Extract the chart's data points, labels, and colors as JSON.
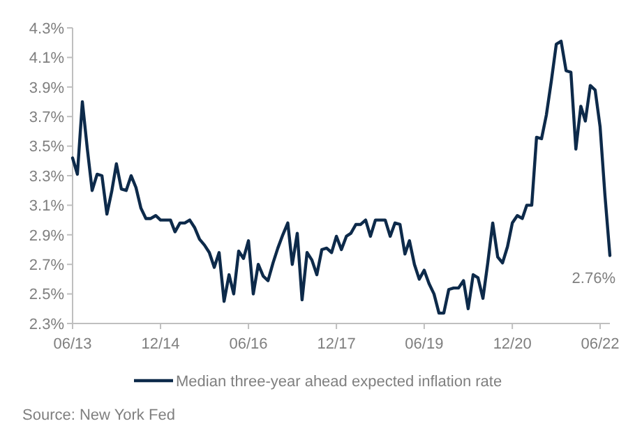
{
  "chart_data": {
    "type": "line",
    "x": [
      "2013-06",
      "2013-07",
      "2013-08",
      "2013-09",
      "2013-10",
      "2013-11",
      "2013-12",
      "2014-01",
      "2014-02",
      "2014-03",
      "2014-04",
      "2014-05",
      "2014-06",
      "2014-07",
      "2014-08",
      "2014-09",
      "2014-10",
      "2014-11",
      "2014-12",
      "2015-01",
      "2015-02",
      "2015-03",
      "2015-04",
      "2015-05",
      "2015-06",
      "2015-07",
      "2015-08",
      "2015-09",
      "2015-10",
      "2015-11",
      "2015-12",
      "2016-01",
      "2016-02",
      "2016-03",
      "2016-04",
      "2016-05",
      "2016-06",
      "2016-07",
      "2016-08",
      "2016-09",
      "2016-10",
      "2016-11",
      "2016-12",
      "2017-01",
      "2017-02",
      "2017-03",
      "2017-04",
      "2017-05",
      "2017-06",
      "2017-07",
      "2017-08",
      "2017-09",
      "2017-10",
      "2017-11",
      "2017-12",
      "2018-01",
      "2018-02",
      "2018-03",
      "2018-04",
      "2018-05",
      "2018-06",
      "2018-07",
      "2018-08",
      "2018-09",
      "2018-10",
      "2018-11",
      "2018-12",
      "2019-01",
      "2019-02",
      "2019-03",
      "2019-04",
      "2019-05",
      "2019-06",
      "2019-07",
      "2019-08",
      "2019-09",
      "2019-10",
      "2019-11",
      "2019-12",
      "2020-01",
      "2020-02",
      "2020-03",
      "2020-04",
      "2020-05",
      "2020-06",
      "2020-07",
      "2020-08",
      "2020-09",
      "2020-10",
      "2020-11",
      "2020-12",
      "2021-01",
      "2021-02",
      "2021-03",
      "2021-04",
      "2021-05",
      "2021-06",
      "2021-07",
      "2021-08",
      "2021-09",
      "2021-10",
      "2021-11",
      "2021-12",
      "2022-01",
      "2022-02",
      "2022-03",
      "2022-04",
      "2022-05",
      "2022-06",
      "2022-07",
      "2022-08"
    ],
    "series": [
      {
        "name": "Median three-year ahead expected inflation rate",
        "color": "#0d2a4a",
        "values": [
          3.42,
          3.31,
          3.8,
          3.48,
          3.2,
          3.31,
          3.3,
          3.04,
          3.2,
          3.38,
          3.21,
          3.2,
          3.3,
          3.22,
          3.08,
          3.01,
          3.01,
          3.03,
          3.0,
          3.0,
          3.0,
          2.92,
          2.98,
          2.98,
          3.0,
          2.95,
          2.87,
          2.83,
          2.78,
          2.68,
          2.78,
          2.45,
          2.63,
          2.5,
          2.79,
          2.74,
          2.86,
          2.5,
          2.7,
          2.62,
          2.59,
          2.71,
          2.81,
          2.9,
          2.98,
          2.7,
          2.91,
          2.46,
          2.78,
          2.73,
          2.63,
          2.8,
          2.81,
          2.78,
          2.89,
          2.8,
          2.89,
          2.91,
          2.97,
          2.97,
          3.0,
          2.89,
          3.0,
          3.0,
          3.0,
          2.89,
          2.98,
          2.97,
          2.77,
          2.86,
          2.7,
          2.6,
          2.66,
          2.57,
          2.5,
          2.37,
          2.37,
          2.53,
          2.54,
          2.54,
          2.59,
          2.4,
          2.63,
          2.61,
          2.47,
          2.71,
          2.98,
          2.75,
          2.71,
          2.82,
          2.98,
          3.03,
          3.01,
          3.1,
          3.1,
          3.56,
          3.55,
          3.71,
          3.94,
          4.19,
          4.21,
          4.01,
          4.0,
          3.48,
          3.77,
          3.67,
          3.91,
          3.88,
          3.63,
          3.17,
          2.76
        ]
      }
    ],
    "xlim": [
      "2013-06",
      "2022-08"
    ],
    "xticks": [
      {
        "value": "2013-06",
        "label": "06/13"
      },
      {
        "value": "2014-12",
        "label": "12/14"
      },
      {
        "value": "2016-06",
        "label": "06/16"
      },
      {
        "value": "2017-12",
        "label": "12/17"
      },
      {
        "value": "2019-06",
        "label": "06/19"
      },
      {
        "value": "2020-12",
        "label": "12/20"
      },
      {
        "value": "2022-06",
        "label": "06/22"
      }
    ],
    "ylim": [
      2.3,
      4.3
    ],
    "yticks": [
      {
        "value": 2.3,
        "label": "2.3%"
      },
      {
        "value": 2.5,
        "label": "2.5%"
      },
      {
        "value": 2.7,
        "label": "2.7%"
      },
      {
        "value": 2.9,
        "label": "2.9%"
      },
      {
        "value": 3.1,
        "label": "3.1%"
      },
      {
        "value": 3.3,
        "label": "3.3%"
      },
      {
        "value": 3.5,
        "label": "3.5%"
      },
      {
        "value": 3.7,
        "label": "3.7%"
      },
      {
        "value": 3.9,
        "label": "3.9%"
      },
      {
        "value": 4.1,
        "label": "4.1%"
      },
      {
        "value": 4.3,
        "label": "4.3%"
      }
    ],
    "annotations": [
      {
        "text": "2.76%",
        "x": "2022-08",
        "y": 2.76
      },
      "Source: New York Fed"
    ],
    "legend": "bottom",
    "grid": false,
    "marker": "none",
    "line_style": "solid"
  }
}
